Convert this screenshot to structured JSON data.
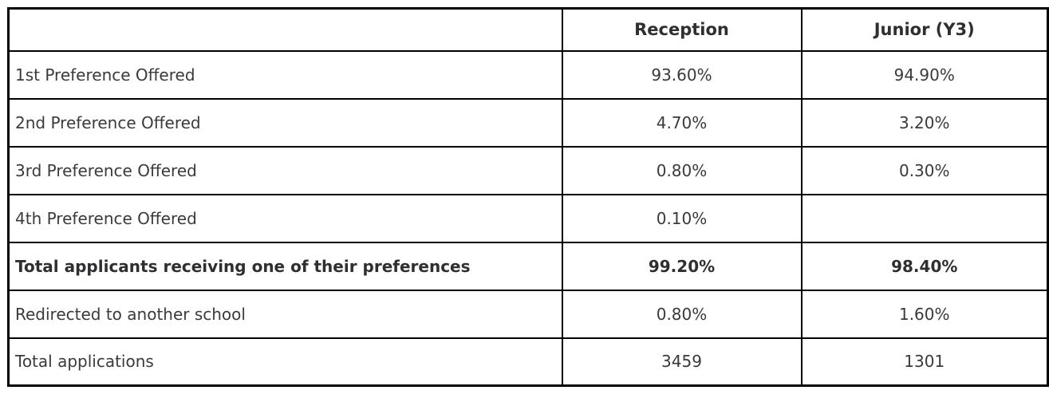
{
  "chart_data": {
    "type": "table",
    "columns": [
      "",
      "Reception",
      "Junior (Y3)"
    ],
    "rows": [
      {
        "label": "1st Preference Offered",
        "reception": "93.60%",
        "junior": "94.90%",
        "emphasis": false
      },
      {
        "label": "2nd Preference Offered",
        "reception": "4.70%",
        "junior": "3.20%",
        "emphasis": false
      },
      {
        "label": "3rd Preference Offered",
        "reception": "0.80%",
        "junior": "0.30%",
        "emphasis": false
      },
      {
        "label": "4th Preference Offered",
        "reception": "0.10%",
        "junior": "",
        "emphasis": false
      },
      {
        "label": "Total applicants receiving one of their preferences",
        "reception": "99.20%",
        "junior": "98.40%",
        "emphasis": true
      },
      {
        "label": "Redirected to another school",
        "reception": "0.80%",
        "junior": "1.60%",
        "emphasis": false
      },
      {
        "label": "Total applications",
        "reception": "3459",
        "junior": "1301",
        "emphasis": false
      }
    ]
  },
  "colors": {
    "border": "#000000",
    "text": "#3a3a3c",
    "emphasis_text": "#2f2f32",
    "background": "#ffffff"
  }
}
